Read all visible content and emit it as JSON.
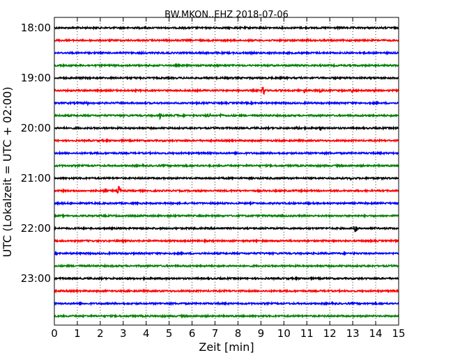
{
  "chart_data": {
    "type": "line",
    "title": "BW.MKON..EHZ 2018-07-06",
    "xlabel": "Zeit  [min]",
    "ylabel": "UTC (Lokalzeit = UTC + 02:00)",
    "xlim": [
      0,
      15
    ],
    "x_ticks": [
      "0",
      "1",
      "2",
      "3",
      "4",
      "5",
      "6",
      "7",
      "8",
      "9",
      "10",
      "11",
      "12",
      "13",
      "14",
      "15"
    ],
    "y_ticks": [
      "18:00",
      "19:00",
      "20:00",
      "21:00",
      "22:00",
      "23:00"
    ],
    "grid": "vertical dotted",
    "trace_interval_min": 15,
    "trace_colors": [
      "#000000",
      "#ff0000",
      "#0000ff",
      "#008000"
    ],
    "traces": [
      {
        "start": "18:00",
        "color": "#000000",
        "events": []
      },
      {
        "start": "18:15",
        "color": "#ff0000",
        "events": [
          {
            "t": 11.0,
            "amp": 0.15
          }
        ]
      },
      {
        "start": "18:30",
        "color": "#0000ff",
        "events": []
      },
      {
        "start": "18:45",
        "color": "#008000",
        "events": []
      },
      {
        "start": "19:00",
        "color": "#000000",
        "events": []
      },
      {
        "start": "19:15",
        "color": "#ff0000",
        "events": [
          {
            "t": 9.1,
            "amp": 0.45
          },
          {
            "t": 10.9,
            "amp": 0.2
          },
          {
            "t": 11.6,
            "amp": 0.15
          },
          {
            "t": 13.0,
            "amp": 0.15
          },
          {
            "t": 14.0,
            "amp": 0.15
          }
        ]
      },
      {
        "start": "19:30",
        "color": "#0000ff",
        "events": [
          {
            "t": 1.4,
            "amp": 0.15
          }
        ]
      },
      {
        "start": "19:45",
        "color": "#008000",
        "events": [
          {
            "t": 4.6,
            "amp": 0.2
          },
          {
            "t": 5.3,
            "amp": 0.15
          },
          {
            "t": 6.7,
            "amp": 0.2
          },
          {
            "t": 7.3,
            "amp": 0.15
          }
        ]
      },
      {
        "start": "20:00",
        "color": "#000000",
        "events": [
          {
            "t": 0.4,
            "amp": 0.15
          },
          {
            "t": 10.6,
            "amp": 0.15
          },
          {
            "t": 11.6,
            "amp": 0.15
          }
        ]
      },
      {
        "start": "20:15",
        "color": "#ff0000",
        "events": []
      },
      {
        "start": "20:30",
        "color": "#0000ff",
        "events": []
      },
      {
        "start": "20:45",
        "color": "#008000",
        "events": []
      },
      {
        "start": "21:00",
        "color": "#000000",
        "events": [
          {
            "t": 12.9,
            "amp": 0.15
          }
        ]
      },
      {
        "start": "21:15",
        "color": "#ff0000",
        "events": [
          {
            "t": 2.2,
            "amp": 0.2
          },
          {
            "t": 2.8,
            "amp": 0.35
          }
        ]
      },
      {
        "start": "21:30",
        "color": "#0000ff",
        "events": []
      },
      {
        "start": "21:45",
        "color": "#008000",
        "events": []
      },
      {
        "start": "22:00",
        "color": "#000000",
        "events": [
          {
            "t": 13.1,
            "amp": 0.35
          }
        ]
      },
      {
        "start": "22:15",
        "color": "#ff0000",
        "events": []
      },
      {
        "start": "22:30",
        "color": "#0000ff",
        "events": []
      },
      {
        "start": "22:45",
        "color": "#008000",
        "events": []
      },
      {
        "start": "23:00",
        "color": "#000000",
        "events": []
      },
      {
        "start": "23:15",
        "color": "#ff0000",
        "events": []
      },
      {
        "start": "23:30",
        "color": "#0000ff",
        "events": []
      },
      {
        "start": "23:45",
        "color": "#008000",
        "events": []
      }
    ]
  }
}
